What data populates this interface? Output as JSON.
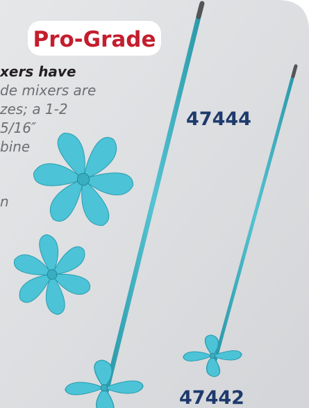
{
  "badge": "Pro-Grade",
  "description": {
    "lines": [
      "xers have",
      "de mixers are",
      "zes; a 1-2",
      "5/16″",
      "bine",
      "n"
    ]
  },
  "products": [
    {
      "number": "47444"
    },
    {
      "number": "47442"
    }
  ]
}
